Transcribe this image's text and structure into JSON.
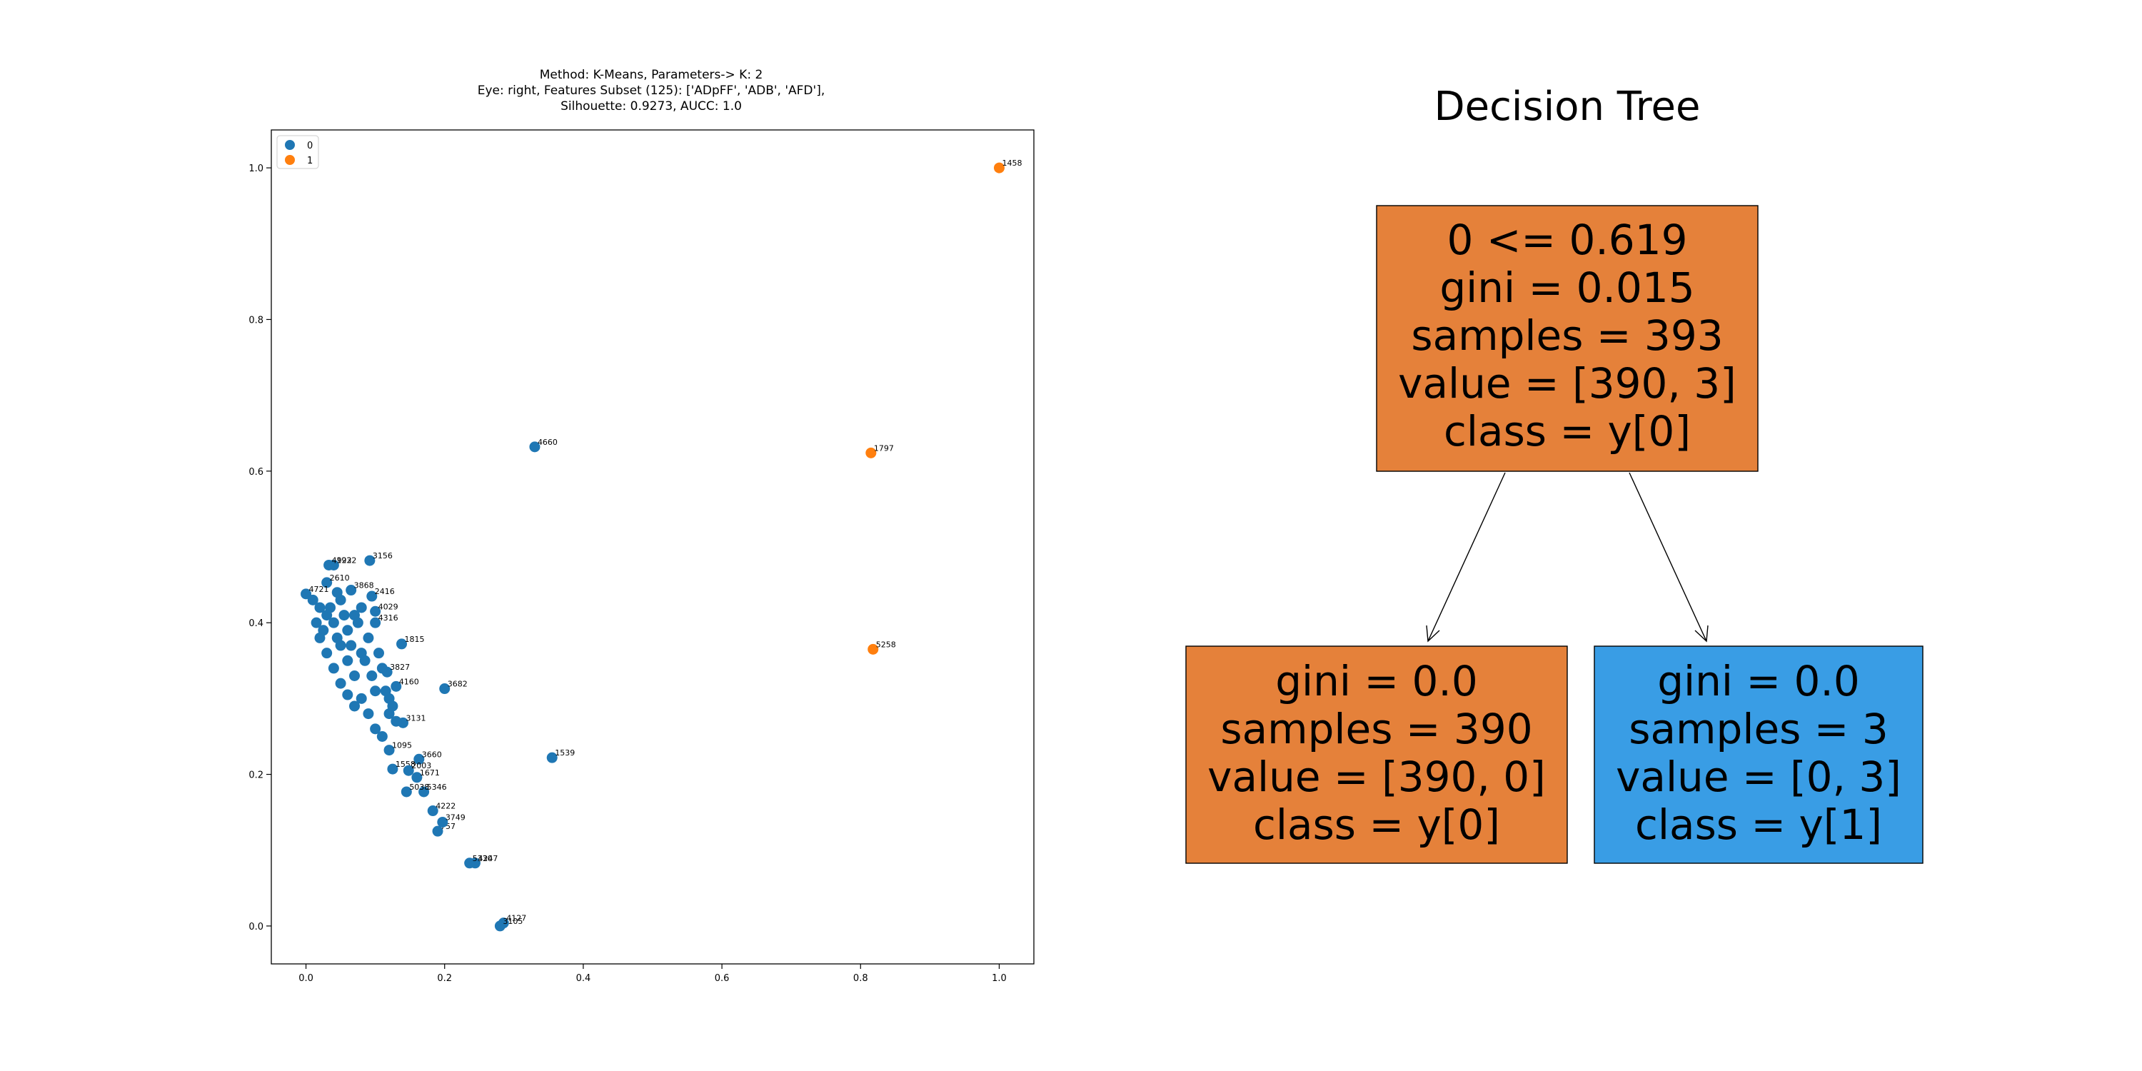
{
  "scatter": {
    "title_lines": [
      "Method: K-Means, Parameters-> K: 2",
      "Eye: right, Features Subset (125): ['ADpFF', 'ADB', 'AFD'],",
      "Silhouette: 0.9273, AUCC: 1.0"
    ],
    "legend": [
      {
        "label": "0",
        "color": "#1f77b4"
      },
      {
        "label": "1",
        "color": "#ff7f0e"
      }
    ],
    "xticks": [
      "0.0",
      "0.2",
      "0.4",
      "0.6",
      "0.8",
      "1.0"
    ],
    "yticks": [
      "0.0",
      "0.2",
      "0.4",
      "0.6",
      "0.8",
      "1.0"
    ]
  },
  "tree": {
    "title": "Decision Tree",
    "nodes": [
      {
        "id": "root",
        "lines": [
          "0 <= 0.619",
          "gini = 0.015",
          "samples = 393",
          "value = [390, 3]",
          "class = y[0]"
        ],
        "fill": "#e5813a"
      },
      {
        "id": "left",
        "lines": [
          "gini = 0.0",
          "samples = 390",
          "value = [390, 0]",
          "class = y[0]"
        ],
        "fill": "#e5813a"
      },
      {
        "id": "right",
        "lines": [
          "gini = 0.0",
          "samples = 3",
          "value = [0, 3]",
          "class = y[1]"
        ],
        "fill": "#399de5"
      }
    ]
  },
  "chart_data": [
    {
      "type": "scatter",
      "title": "Method: K-Means, Parameters-> K: 2\nEye: right, Features Subset (125): ['ADpFF', 'ADB', 'AFD'],\nSilhouette: 0.9273, AUCC: 1.0",
      "xlabel": "",
      "ylabel": "",
      "xlim": [
        -0.05,
        1.05
      ],
      "ylim": [
        -0.05,
        1.05
      ],
      "grid": false,
      "legend_position": "top-left",
      "series": [
        {
          "name": "0",
          "color": "#1f77b4",
          "points": [
            {
              "x": 0.33,
              "y": 0.632,
              "label": "4660"
            },
            {
              "x": 0.355,
              "y": 0.222,
              "label": "1539"
            },
            {
              "x": 0.092,
              "y": 0.482,
              "label": "3156"
            },
            {
              "x": 0.2,
              "y": 0.313,
              "label": "3682"
            },
            {
              "x": 0.138,
              "y": 0.372,
              "label": "1815"
            },
            {
              "x": 0.244,
              "y": 0.083,
              "label": "4247"
            },
            {
              "x": 0.236,
              "y": 0.083,
              "label": "5330"
            },
            {
              "x": 0.285,
              "y": 0.004,
              "label": "4127"
            },
            {
              "x": 0.28,
              "y": 0.0,
              "label": "3105"
            },
            {
              "x": 0.19,
              "y": 0.125,
              "label": "757"
            },
            {
              "x": 0.197,
              "y": 0.137,
              "label": "3749"
            },
            {
              "x": 0.183,
              "y": 0.152,
              "label": "4222"
            },
            {
              "x": 0.17,
              "y": 0.177,
              "label": "5346"
            },
            {
              "x": 0.145,
              "y": 0.177,
              "label": "5038"
            },
            {
              "x": 0.163,
              "y": 0.22,
              "label": "3660"
            },
            {
              "x": 0.16,
              "y": 0.196,
              "label": "1671"
            },
            {
              "x": 0.12,
              "y": 0.232,
              "label": "1095"
            },
            {
              "x": 0.125,
              "y": 0.207,
              "label": "1558"
            },
            {
              "x": 0.148,
              "y": 0.205,
              "label": "2003"
            },
            {
              "x": 0.14,
              "y": 0.268,
              "label": "3131"
            },
            {
              "x": 0.13,
              "y": 0.316,
              "label": "4160"
            },
            {
              "x": 0.117,
              "y": 0.335,
              "label": "3827"
            },
            {
              "x": 0.1,
              "y": 0.4,
              "label": "4316"
            },
            {
              "x": 0.1,
              "y": 0.415,
              "label": "4029"
            },
            {
              "x": 0.095,
              "y": 0.435,
              "label": "2416"
            },
            {
              "x": 0.065,
              "y": 0.443,
              "label": "3868"
            },
            {
              "x": 0.03,
              "y": 0.453,
              "label": "2610"
            },
            {
              "x": 0.04,
              "y": 0.476,
              "label": "1932"
            },
            {
              "x": 0.033,
              "y": 0.476,
              "label": "4922"
            },
            {
              "x": 0.0,
              "y": 0.438,
              "label": "4721"
            },
            {
              "x": 0.01,
              "y": 0.43,
              "label": ""
            },
            {
              "x": 0.02,
              "y": 0.42,
              "label": ""
            },
            {
              "x": 0.03,
              "y": 0.41,
              "label": ""
            },
            {
              "x": 0.04,
              "y": 0.4,
              "label": ""
            },
            {
              "x": 0.02,
              "y": 0.38,
              "label": ""
            },
            {
              "x": 0.03,
              "y": 0.36,
              "label": ""
            },
            {
              "x": 0.05,
              "y": 0.37,
              "label": ""
            },
            {
              "x": 0.06,
              "y": 0.39,
              "label": ""
            },
            {
              "x": 0.07,
              "y": 0.41,
              "label": ""
            },
            {
              "x": 0.05,
              "y": 0.43,
              "label": ""
            },
            {
              "x": 0.06,
              "y": 0.35,
              "label": ""
            },
            {
              "x": 0.07,
              "y": 0.33,
              "label": ""
            },
            {
              "x": 0.08,
              "y": 0.36,
              "label": ""
            },
            {
              "x": 0.09,
              "y": 0.38,
              "label": ""
            },
            {
              "x": 0.08,
              "y": 0.3,
              "label": ""
            },
            {
              "x": 0.09,
              "y": 0.28,
              "label": ""
            },
            {
              "x": 0.1,
              "y": 0.31,
              "label": ""
            },
            {
              "x": 0.11,
              "y": 0.34,
              "label": ""
            },
            {
              "x": 0.1,
              "y": 0.26,
              "label": ""
            },
            {
              "x": 0.11,
              "y": 0.25,
              "label": ""
            },
            {
              "x": 0.12,
              "y": 0.28,
              "label": ""
            },
            {
              "x": 0.12,
              "y": 0.3,
              "label": ""
            },
            {
              "x": 0.13,
              "y": 0.27,
              "label": ""
            },
            {
              "x": 0.04,
              "y": 0.34,
              "label": ""
            },
            {
              "x": 0.05,
              "y": 0.32,
              "label": ""
            },
            {
              "x": 0.06,
              "y": 0.305,
              "label": ""
            },
            {
              "x": 0.07,
              "y": 0.29,
              "label": ""
            },
            {
              "x": 0.015,
              "y": 0.4,
              "label": ""
            },
            {
              "x": 0.025,
              "y": 0.39,
              "label": ""
            },
            {
              "x": 0.045,
              "y": 0.38,
              "label": ""
            },
            {
              "x": 0.055,
              "y": 0.41,
              "label": ""
            },
            {
              "x": 0.065,
              "y": 0.37,
              "label": ""
            },
            {
              "x": 0.075,
              "y": 0.4,
              "label": ""
            },
            {
              "x": 0.085,
              "y": 0.35,
              "label": ""
            },
            {
              "x": 0.095,
              "y": 0.33,
              "label": ""
            },
            {
              "x": 0.105,
              "y": 0.36,
              "label": ""
            },
            {
              "x": 0.115,
              "y": 0.31,
              "label": ""
            },
            {
              "x": 0.125,
              "y": 0.29,
              "label": ""
            },
            {
              "x": 0.035,
              "y": 0.42,
              "label": ""
            },
            {
              "x": 0.045,
              "y": 0.44,
              "label": ""
            },
            {
              "x": 0.08,
              "y": 0.42,
              "label": ""
            }
          ]
        },
        {
          "name": "1",
          "color": "#ff7f0e",
          "points": [
            {
              "x": 1.0,
              "y": 1.0,
              "label": "1458"
            },
            {
              "x": 0.815,
              "y": 0.624,
              "label": "1797"
            },
            {
              "x": 0.818,
              "y": 0.365,
              "label": "5258"
            }
          ]
        }
      ]
    }
  ]
}
